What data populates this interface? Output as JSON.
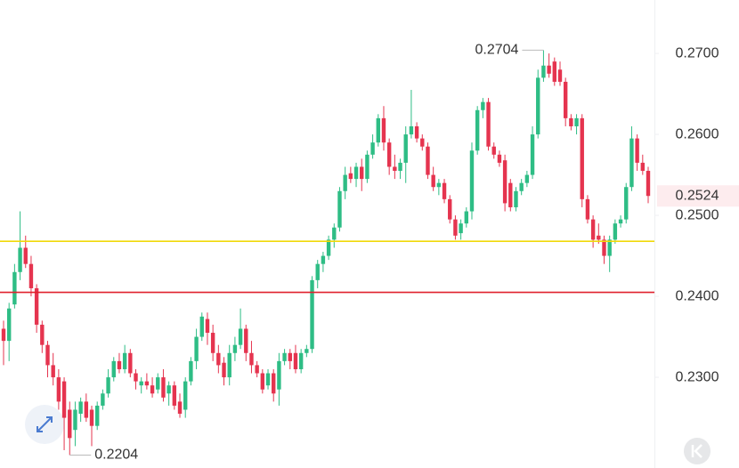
{
  "chart_data": {
    "type": "candlestick",
    "open": [
      0.236,
      0.2345,
      0.239,
      0.243,
      0.246,
      0.244,
      0.241,
      0.2365,
      0.234,
      0.2315,
      0.23,
      0.2295,
      0.226,
      0.2235,
      0.2255,
      0.227,
      0.226,
      0.224,
      0.2265,
      0.228,
      0.23,
      0.232,
      0.231,
      0.233,
      0.2305,
      0.229,
      0.2295,
      0.229,
      0.2285,
      0.23,
      0.228,
      0.229,
      0.227,
      0.226,
      0.2295,
      0.232,
      0.235,
      0.2372,
      0.2355,
      0.233,
      0.2318,
      0.23,
      0.233,
      0.234,
      0.236,
      0.233,
      0.2315,
      0.2305,
      0.229,
      0.2305,
      0.2285,
      0.232,
      0.233,
      0.233,
      0.231,
      0.233,
      0.2335,
      0.242,
      0.244,
      0.245,
      0.247,
      0.2485,
      0.253,
      0.2552,
      0.2545,
      0.256,
      0.2545,
      0.2575,
      0.259,
      0.262,
      0.259,
      0.256,
      0.2555,
      0.2565,
      0.26,
      0.261,
      0.2595,
      0.2585,
      0.255,
      0.2535,
      0.254,
      0.252,
      0.2495,
      0.2478,
      0.249,
      0.2505,
      0.258,
      0.263,
      0.264,
      0.2585,
      0.2575,
      0.2568,
      0.254,
      0.251,
      0.253,
      0.254,
      0.255,
      0.26,
      0.267,
      0.2685,
      0.269,
      0.268,
      0.2665,
      0.262,
      0.261,
      0.262,
      0.252,
      0.2495,
      0.2475,
      0.247,
      0.245,
      0.247,
      0.249,
      0.2495,
      0.2535,
      0.2595,
      0.2565,
      0.2555
    ],
    "high": [
      0.237,
      0.2392,
      0.244,
      0.2505,
      0.2475,
      0.245,
      0.2415,
      0.237,
      0.2345,
      0.233,
      0.231,
      0.23,
      0.227,
      0.227,
      0.2275,
      0.228,
      0.2265,
      0.227,
      0.2285,
      0.231,
      0.2325,
      0.233,
      0.234,
      0.2335,
      0.231,
      0.23,
      0.2305,
      0.23,
      0.2305,
      0.231,
      0.2295,
      0.2295,
      0.228,
      0.23,
      0.2325,
      0.236,
      0.238,
      0.238,
      0.2365,
      0.234,
      0.2325,
      0.234,
      0.235,
      0.2385,
      0.2365,
      0.2345,
      0.232,
      0.231,
      0.231,
      0.231,
      0.233,
      0.2335,
      0.2335,
      0.234,
      0.2335,
      0.234,
      0.2425,
      0.2445,
      0.2455,
      0.2475,
      0.249,
      0.2535,
      0.256,
      0.256,
      0.2565,
      0.257,
      0.258,
      0.26,
      0.2625,
      0.2635,
      0.2595,
      0.2575,
      0.257,
      0.261,
      0.2655,
      0.2615,
      0.26,
      0.259,
      0.256,
      0.2545,
      0.2545,
      0.2525,
      0.25,
      0.2495,
      0.251,
      0.259,
      0.2635,
      0.2645,
      0.2645,
      0.259,
      0.258,
      0.2575,
      0.2545,
      0.2535,
      0.2545,
      0.2555,
      0.261,
      0.268,
      0.2704,
      0.27,
      0.2695,
      0.269,
      0.267,
      0.2625,
      0.2625,
      0.2625,
      0.2525,
      0.25,
      0.249,
      0.2475,
      0.2475,
      0.2495,
      0.25,
      0.254,
      0.261,
      0.26,
      0.2575,
      0.256
    ],
    "low": [
      0.2315,
      0.232,
      0.2385,
      0.242,
      0.2435,
      0.24,
      0.2355,
      0.233,
      0.23,
      0.229,
      0.226,
      0.221,
      0.2204,
      0.2215,
      0.2245,
      0.2245,
      0.2215,
      0.2235,
      0.226,
      0.2275,
      0.2295,
      0.2305,
      0.2305,
      0.23,
      0.2285,
      0.228,
      0.2285,
      0.2275,
      0.228,
      0.227,
      0.2265,
      0.226,
      0.225,
      0.225,
      0.229,
      0.231,
      0.2345,
      0.234,
      0.232,
      0.2305,
      0.229,
      0.229,
      0.232,
      0.2335,
      0.232,
      0.2305,
      0.23,
      0.228,
      0.2285,
      0.227,
      0.2265,
      0.2315,
      0.231,
      0.2305,
      0.2305,
      0.2325,
      0.233,
      0.241,
      0.243,
      0.2445,
      0.246,
      0.248,
      0.252,
      0.254,
      0.2535,
      0.253,
      0.254,
      0.257,
      0.2585,
      0.258,
      0.255,
      0.2545,
      0.2545,
      0.254,
      0.2595,
      0.259,
      0.258,
      0.2545,
      0.253,
      0.2525,
      0.2515,
      0.249,
      0.247,
      0.247,
      0.2485,
      0.2495,
      0.2575,
      0.262,
      0.258,
      0.257,
      0.256,
      0.2505,
      0.2505,
      0.2505,
      0.2525,
      0.2535,
      0.2545,
      0.2595,
      0.2665,
      0.267,
      0.266,
      0.266,
      0.261,
      0.2605,
      0.26,
      0.251,
      0.249,
      0.246,
      0.2465,
      0.244,
      0.243,
      0.2465,
      0.2485,
      0.249,
      0.253,
      0.2555,
      0.255,
      0.2515
    ],
    "close": [
      0.2345,
      0.2385,
      0.243,
      0.246,
      0.244,
      0.241,
      0.2365,
      0.234,
      0.2315,
      0.23,
      0.227,
      0.225,
      0.2225,
      0.226,
      0.227,
      0.225,
      0.224,
      0.2265,
      0.228,
      0.23,
      0.232,
      0.231,
      0.233,
      0.2305,
      0.2295,
      0.2295,
      0.229,
      0.228,
      0.23,
      0.2275,
      0.229,
      0.2265,
      0.2255,
      0.2295,
      0.232,
      0.235,
      0.2375,
      0.2355,
      0.233,
      0.2315,
      0.23,
      0.233,
      0.234,
      0.236,
      0.233,
      0.2315,
      0.2305,
      0.2285,
      0.2305,
      0.228,
      0.232,
      0.233,
      0.232,
      0.231,
      0.233,
      0.2335,
      0.242,
      0.244,
      0.245,
      0.247,
      0.2485,
      0.253,
      0.255,
      0.2545,
      0.256,
      0.2545,
      0.2575,
      0.259,
      0.262,
      0.259,
      0.256,
      0.2555,
      0.2565,
      0.26,
      0.261,
      0.2595,
      0.2585,
      0.255,
      0.2535,
      0.254,
      0.252,
      0.2495,
      0.2475,
      0.249,
      0.2505,
      0.258,
      0.263,
      0.264,
      0.2585,
      0.2575,
      0.2565,
      0.2515,
      0.251,
      0.253,
      0.254,
      0.255,
      0.26,
      0.267,
      0.2685,
      0.2675,
      0.2665,
      0.2665,
      0.262,
      0.261,
      0.262,
      0.252,
      0.2495,
      0.247,
      0.247,
      0.245,
      0.247,
      0.249,
      0.2495,
      0.2535,
      0.2595,
      0.2565,
      0.2555,
      0.2524
    ],
    "up_color": "#2ebd85",
    "down_color": "#e5344f",
    "ylim": [
      0.2188,
      0.2766
    ],
    "yticks": [
      {
        "value": 0.23,
        "label": "0.2300"
      },
      {
        "value": 0.24,
        "label": "0.2400"
      },
      {
        "value": 0.25,
        "label": "0.2500"
      },
      {
        "value": 0.26,
        "label": "0.2600"
      },
      {
        "value": 0.27,
        "label": "0.2700"
      }
    ],
    "hlines": [
      {
        "value": 0.2468,
        "color": "#f0d90a"
      },
      {
        "value": 0.2405,
        "color": "#e0202c"
      }
    ],
    "high_annotation": 0.2704,
    "low_annotation": 0.2204,
    "last_price": 0.2524,
    "last_price_color": "#e5344f"
  }
}
